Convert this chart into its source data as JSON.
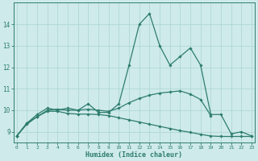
{
  "xlabel": "Humidex (Indice chaleur)",
  "x": [
    0,
    1,
    2,
    3,
    4,
    5,
    6,
    7,
    8,
    9,
    10,
    11,
    12,
    13,
    14,
    15,
    16,
    17,
    18,
    19,
    20,
    21,
    22,
    23
  ],
  "line1": [
    8.8,
    9.4,
    9.8,
    10.1,
    10.0,
    10.1,
    10.0,
    10.3,
    9.9,
    9.9,
    10.3,
    12.1,
    14.0,
    14.5,
    13.0,
    12.1,
    12.5,
    12.9,
    12.1,
    9.8,
    9.8,
    8.9,
    9.0,
    8.8
  ],
  "line2": [
    8.8,
    9.4,
    9.7,
    10.0,
    10.05,
    10.0,
    10.0,
    10.05,
    10.0,
    9.95,
    10.1,
    10.35,
    10.55,
    10.7,
    10.8,
    10.85,
    10.9,
    10.75,
    10.5,
    9.75,
    null,
    null,
    null,
    null
  ],
  "line3": [
    8.8,
    9.35,
    9.7,
    9.95,
    9.95,
    9.85,
    9.82,
    9.82,
    9.8,
    9.75,
    9.65,
    9.55,
    9.45,
    9.35,
    9.25,
    9.15,
    9.05,
    8.97,
    8.88,
    8.8,
    8.78,
    8.78,
    8.78,
    8.78
  ],
  "line_color": "#2e7d6e",
  "bg_color": "#ceeaeb",
  "grid_color": "#aad4d5",
  "ylim": [
    8.5,
    15.0
  ],
  "yticks": [
    9,
    10,
    11,
    12,
    13,
    14
  ],
  "xticks": [
    0,
    1,
    2,
    3,
    4,
    5,
    6,
    7,
    8,
    9,
    10,
    11,
    12,
    13,
    14,
    15,
    16,
    17,
    18,
    19,
    20,
    21,
    22,
    23
  ]
}
